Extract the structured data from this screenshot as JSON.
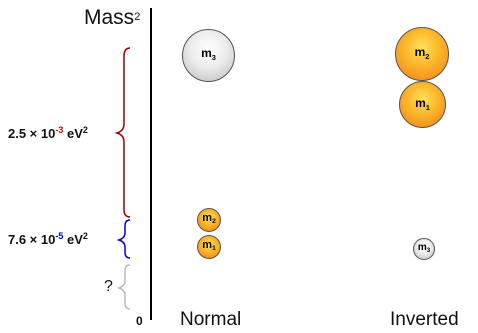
{
  "axis": {
    "title": "Mass",
    "title_sup": "2",
    "zero": "0"
  },
  "splittings": {
    "large": {
      "base": "2.5 × 10",
      "exp": "-3",
      "unit": " eV",
      "unit_sup": "2",
      "brace_color": "#990000"
    },
    "small": {
      "base": "7.6 × 10",
      "exp": "-5",
      "unit": " eV",
      "unit_sup": "2",
      "brace_color": "#0000cc"
    },
    "unknown": {
      "label": "?",
      "brace_color": "#bbbbbb"
    }
  },
  "hierarchies": {
    "normal": {
      "label": "Normal"
    },
    "inverted": {
      "label": "Inverted"
    }
  },
  "masses": {
    "normal": [
      {
        "letter": "m",
        "index": "3",
        "color": "grey"
      },
      {
        "letter": "m",
        "index": "2",
        "color": "orange"
      },
      {
        "letter": "m",
        "index": "1",
        "color": "orange"
      }
    ],
    "inverted": [
      {
        "letter": "m",
        "index": "2",
        "color": "orange"
      },
      {
        "letter": "m",
        "index": "1",
        "color": "orange"
      },
      {
        "letter": "m",
        "index": "3",
        "color": "grey"
      }
    ]
  }
}
